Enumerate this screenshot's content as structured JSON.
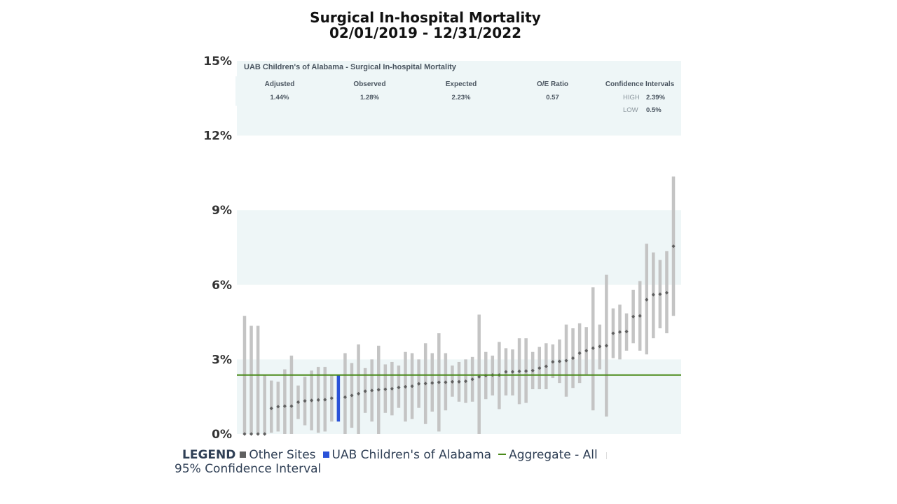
{
  "chart_data": {
    "type": "scatter",
    "title": "Surgical In-hospital Mortality",
    "subtitle": "02/01/2019 - 12/31/2022",
    "ylim": [
      0,
      15
    ],
    "y_ticks": [
      "0%",
      "3%",
      "6%",
      "9%",
      "12%",
      "15%"
    ],
    "y_tick_values": [
      0,
      3,
      6,
      9,
      12,
      15
    ],
    "aggregate_all": 2.37,
    "highlight_index": 14,
    "sites": [
      {
        "v": 0.0,
        "lo": 0.0,
        "hi": 4.75
      },
      {
        "v": 0.0,
        "lo": 0.0,
        "hi": 4.35
      },
      {
        "v": 0.0,
        "lo": 0.0,
        "hi": 4.35
      },
      {
        "v": 0.0,
        "lo": 0.0,
        "hi": 2.37
      },
      {
        "v": 1.03,
        "lo": 0.05,
        "hi": 2.15
      },
      {
        "v": 1.1,
        "lo": 0.1,
        "hi": 2.1
      },
      {
        "v": 1.12,
        "lo": 0.0,
        "hi": 2.6
      },
      {
        "v": 1.12,
        "lo": 0.0,
        "hi": 3.15
      },
      {
        "v": 1.28,
        "lo": 0.6,
        "hi": 1.95
      },
      {
        "v": 1.33,
        "lo": 0.35,
        "hi": 2.3
      },
      {
        "v": 1.35,
        "lo": 0.15,
        "hi": 2.55
      },
      {
        "v": 1.37,
        "lo": 0.05,
        "hi": 2.7
      },
      {
        "v": 1.38,
        "lo": 0.1,
        "hi": 2.7
      },
      {
        "v": 1.44,
        "lo": 0.5,
        "hi": 2.39
      },
      {
        "v": 1.44,
        "lo": 0.5,
        "hi": 2.39
      },
      {
        "v": 1.48,
        "lo": 0.0,
        "hi": 3.25
      },
      {
        "v": 1.55,
        "lo": 0.25,
        "hi": 2.85
      },
      {
        "v": 1.62,
        "lo": 0.0,
        "hi": 3.6
      },
      {
        "v": 1.72,
        "lo": 0.85,
        "hi": 2.65
      },
      {
        "v": 1.75,
        "lo": 0.5,
        "hi": 3.0
      },
      {
        "v": 1.78,
        "lo": 0.0,
        "hi": 3.55
      },
      {
        "v": 1.8,
        "lo": 0.85,
        "hi": 2.8
      },
      {
        "v": 1.82,
        "lo": 0.75,
        "hi": 2.9
      },
      {
        "v": 1.87,
        "lo": 1.05,
        "hi": 2.75
      },
      {
        "v": 1.9,
        "lo": 0.5,
        "hi": 3.3
      },
      {
        "v": 1.92,
        "lo": 0.6,
        "hi": 3.25
      },
      {
        "v": 2.02,
        "lo": 1.05,
        "hi": 3.0
      },
      {
        "v": 2.03,
        "lo": 0.4,
        "hi": 3.65
      },
      {
        "v": 2.05,
        "lo": 0.9,
        "hi": 3.25
      },
      {
        "v": 2.08,
        "lo": 0.1,
        "hi": 4.05
      },
      {
        "v": 2.08,
        "lo": 0.95,
        "hi": 3.25
      },
      {
        "v": 2.1,
        "lo": 1.5,
        "hi": 2.75
      },
      {
        "v": 2.1,
        "lo": 1.3,
        "hi": 2.9
      },
      {
        "v": 2.12,
        "lo": 1.25,
        "hi": 3.0
      },
      {
        "v": 2.2,
        "lo": 1.3,
        "hi": 3.1
      },
      {
        "v": 2.3,
        "lo": 0.0,
        "hi": 4.8
      },
      {
        "v": 2.35,
        "lo": 1.4,
        "hi": 3.3
      },
      {
        "v": 2.37,
        "lo": 1.55,
        "hi": 3.15
      },
      {
        "v": 2.37,
        "lo": 1.0,
        "hi": 3.7
      },
      {
        "v": 2.5,
        "lo": 1.55,
        "hi": 3.45
      },
      {
        "v": 2.5,
        "lo": 1.55,
        "hi": 3.4
      },
      {
        "v": 2.52,
        "lo": 1.2,
        "hi": 3.85
      },
      {
        "v": 2.53,
        "lo": 1.25,
        "hi": 3.85
      },
      {
        "v": 2.55,
        "lo": 1.8,
        "hi": 3.3
      },
      {
        "v": 2.65,
        "lo": 1.8,
        "hi": 3.5
      },
      {
        "v": 2.72,
        "lo": 1.8,
        "hi": 3.65
      },
      {
        "v": 2.9,
        "lo": 2.25,
        "hi": 3.6
      },
      {
        "v": 2.92,
        "lo": 2.05,
        "hi": 3.8
      },
      {
        "v": 2.95,
        "lo": 1.5,
        "hi": 4.4
      },
      {
        "v": 3.05,
        "lo": 1.85,
        "hi": 4.25
      },
      {
        "v": 3.25,
        "lo": 2.05,
        "hi": 4.45
      },
      {
        "v": 3.35,
        "lo": 2.4,
        "hi": 4.3
      },
      {
        "v": 3.45,
        "lo": 0.95,
        "hi": 5.9
      },
      {
        "v": 3.52,
        "lo": 2.6,
        "hi": 4.4
      },
      {
        "v": 3.55,
        "lo": 0.7,
        "hi": 6.4
      },
      {
        "v": 4.05,
        "lo": 3.05,
        "hi": 5.05
      },
      {
        "v": 4.1,
        "lo": 3.0,
        "hi": 5.2
      },
      {
        "v": 4.12,
        "lo": 3.35,
        "hi": 4.85
      },
      {
        "v": 4.72,
        "lo": 3.65,
        "hi": 5.8
      },
      {
        "v": 4.75,
        "lo": 3.35,
        "hi": 6.15
      },
      {
        "v": 5.4,
        "lo": 3.2,
        "hi": 7.65
      },
      {
        "v": 5.6,
        "lo": 3.85,
        "hi": 7.3
      },
      {
        "v": 5.62,
        "lo": 4.25,
        "hi": 7.0
      },
      {
        "v": 5.68,
        "lo": 4.05,
        "hi": 7.35
      },
      {
        "v": 7.55,
        "lo": 4.75,
        "hi": 10.35
      }
    ],
    "colors": {
      "other_ci": "#c4c4c4",
      "other_point": "#606060",
      "highlight": "#2a52d8",
      "aggregate": "#4a8a1a",
      "band": "#eef6f7"
    }
  },
  "info_panel": {
    "header": "UAB Children's of Alabama - Surgical In-hospital Mortality",
    "adjusted_label": "Adjusted",
    "adjusted_value": "1.44%",
    "observed_label": "Observed",
    "observed_value": "1.28%",
    "expected_label": "Expected",
    "expected_value": "2.23%",
    "oe_label": "O/E Ratio",
    "oe_value": "0.57",
    "ci_label": "Confidence Intervals",
    "ci_high_label": "HIGH",
    "ci_high_value": "2.39%",
    "ci_low_label": "LOW",
    "ci_low_value": "0.5%"
  },
  "legend": {
    "title": "LEGEND",
    "other_sites": "Other Sites",
    "highlight_site": "UAB Children's of Alabama",
    "aggregate": "Aggregate - All",
    "ci": "95% Confidence Interval"
  }
}
